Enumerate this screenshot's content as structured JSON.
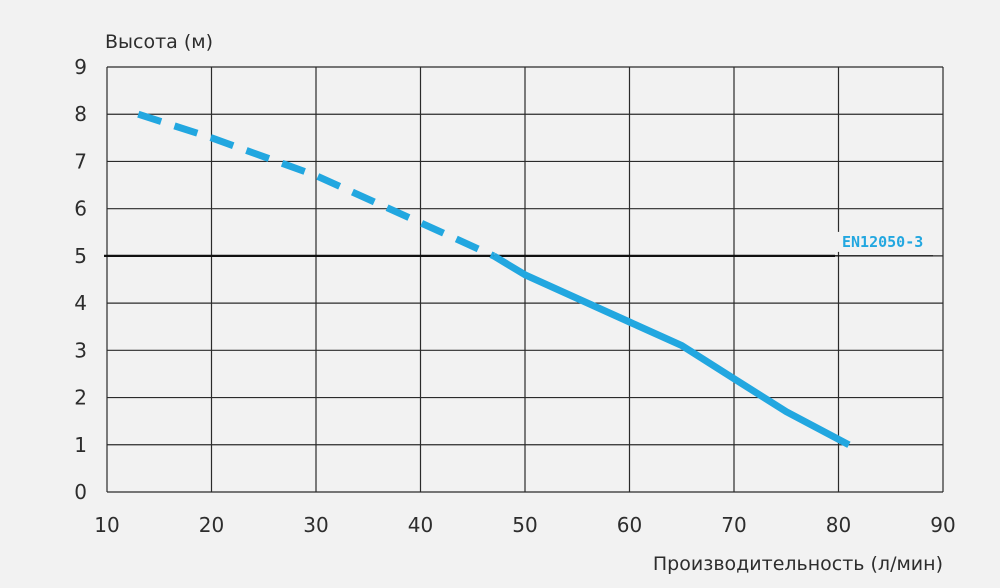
{
  "chart_data": {
    "type": "line",
    "xlabel": "Производительность (л/мин)",
    "ylabel": "Высота (м)",
    "xlim": [
      10,
      90
    ],
    "ylim": [
      0,
      9
    ],
    "x_ticks": [
      10,
      20,
      30,
      40,
      50,
      60,
      70,
      80,
      90
    ],
    "y_ticks": [
      0,
      1,
      2,
      3,
      4,
      5,
      6,
      7,
      8,
      9
    ],
    "grid": true,
    "series": [
      {
        "style": "dashed",
        "color": "#22a7e0",
        "x": [
          13,
          20,
          30,
          40,
          47
        ],
        "y": [
          8.0,
          7.5,
          6.7,
          5.7,
          5.0
        ]
      },
      {
        "style": "solid",
        "color": "#22a7e0",
        "x": [
          47,
          50,
          55,
          60,
          65,
          70,
          75,
          81
        ],
        "y": [
          5.0,
          4.6,
          4.1,
          3.6,
          3.1,
          2.4,
          1.7,
          1.0
        ]
      }
    ],
    "reference_lines": [
      {
        "label": "EN12050-3",
        "y": 5,
        "label_color": "#22a7e0"
      }
    ]
  }
}
